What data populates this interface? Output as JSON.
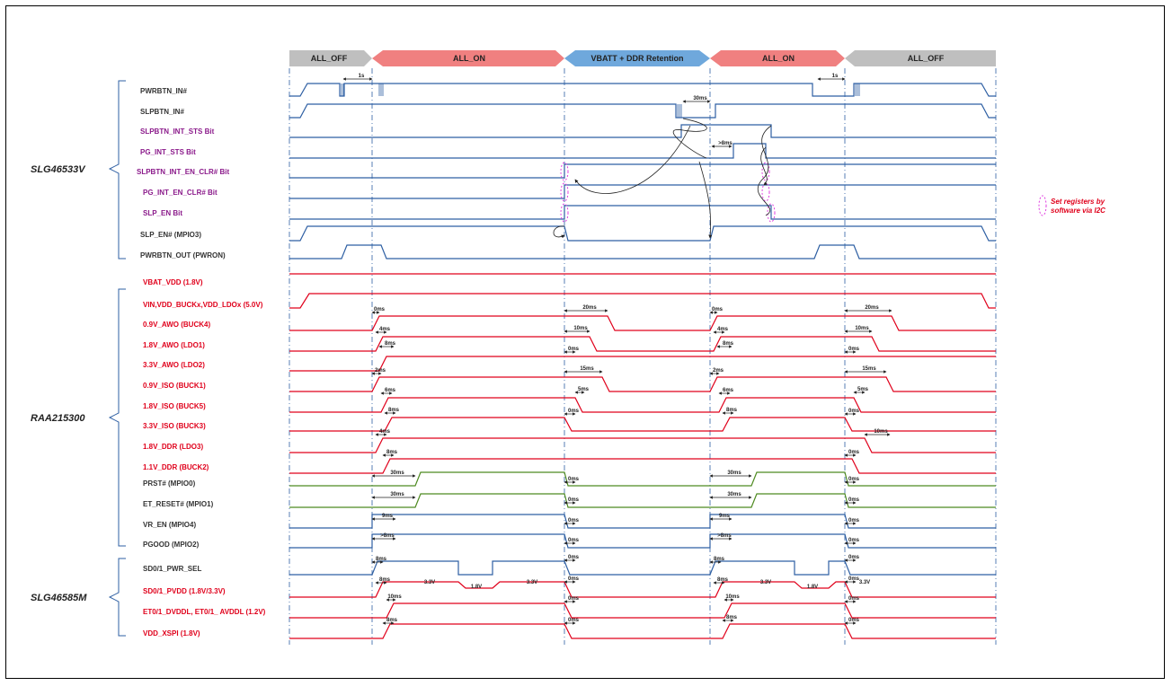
{
  "phases": [
    {
      "label": "ALL_OFF",
      "kind": "off"
    },
    {
      "label": "ALL_ON",
      "kind": "on"
    },
    {
      "label": "VBATT + DDR Retention",
      "kind": "retention"
    },
    {
      "label": "ALL_ON",
      "kind": "on"
    },
    {
      "label": "ALL_OFF",
      "kind": "off"
    }
  ],
  "groups": [
    {
      "label": "SLG46533V"
    },
    {
      "label": "RAA215300"
    },
    {
      "label": "SLG46585M"
    }
  ],
  "signals": [
    {
      "label": "PWRBTN_IN#",
      "color": "#333333"
    },
    {
      "label": "SLPBTN_IN#",
      "color": "#333333"
    },
    {
      "label": "SLPBTN_INT_STS Bit",
      "color": "#8b1a8b"
    },
    {
      "label": "PG_INT_STS Bit",
      "color": "#8b1a8b"
    },
    {
      "label": "SLPBTN_INT_EN_CLR# Bit",
      "color": "#8b1a8b"
    },
    {
      "label": "PG_INT_EN_CLR# Bit",
      "color": "#8b1a8b"
    },
    {
      "label": "SLP_EN Bit",
      "color": "#8b1a8b"
    },
    {
      "label": "SLP_EN# (MPIO3)",
      "color": "#333333"
    },
    {
      "label": "PWRBTN_OUT (PWRON)",
      "color": "#333333"
    },
    {
      "label": "VBAT_VDD (1.8V)",
      "color": "#e0001b"
    },
    {
      "label": "VIN,VDD_BUCKx,VDD_LDOx (5.0V)",
      "color": "#e0001b"
    },
    {
      "label": "0.9V_AWO (BUCK4)",
      "color": "#e0001b"
    },
    {
      "label": "1.8V_AWO (LDO1)",
      "color": "#e0001b"
    },
    {
      "label": "3.3V_AWO (LDO2)",
      "color": "#e0001b"
    },
    {
      "label": "0.9V_ISO (BUCK1)",
      "color": "#e0001b"
    },
    {
      "label": "1.8V_ISO (BUCK5)",
      "color": "#e0001b"
    },
    {
      "label": "3.3V_ISO (BUCK3)",
      "color": "#e0001b"
    },
    {
      "label": "1.8V_DDR (LDO3)",
      "color": "#e0001b"
    },
    {
      "label": "1.1V_DDR (BUCK2)",
      "color": "#e0001b"
    },
    {
      "label": "PRST# (MPIO0)",
      "color": "#333333"
    },
    {
      "label": "ET_RESET# (MPIO1)",
      "color": "#333333"
    },
    {
      "label": "VR_EN (MPIO4)",
      "color": "#333333"
    },
    {
      "label": "PGOOD (MPIO2)",
      "color": "#333333"
    },
    {
      "label": "SD0/1_PWR_SEL",
      "color": "#333333"
    },
    {
      "label": "SD0/1_PVDD (1.8V/3.3V)",
      "color": "#e0001b"
    },
    {
      "label": "ET0/1_DVDDL, ET0/1_ AVDDL (1.2V)",
      "color": "#e0001b"
    },
    {
      "label": "VDD_XSPI (1.8V)",
      "color": "#e0001b"
    }
  ],
  "timing": {
    "t_1s": "1s",
    "t_30ms": "30ms",
    "t_8ms_gt": ">8ms",
    "t_0ms": "0ms",
    "t_20ms": "20ms",
    "t_4ms": "4ms",
    "t_10ms": "10ms",
    "t_8ms": "8ms",
    "t_2ms": "2ms",
    "t_15ms": "15ms",
    "t_5ms": "5ms",
    "t_6ms": "6ms",
    "t_9ms": "9ms",
    "v_33": "3.3V",
    "v_18": "1.8V"
  },
  "note": {
    "line1": "Set registers by",
    "line2": "software via I2C"
  },
  "colors": {
    "blue_line": "#2e5fa3",
    "red_line": "#e0001b",
    "green_line": "#4e8a20",
    "purple_text": "#8b1a8b",
    "off_bar": "#bfbfbf",
    "on_bar": "#f08080",
    "retention_bar": "#6fa8dc"
  }
}
